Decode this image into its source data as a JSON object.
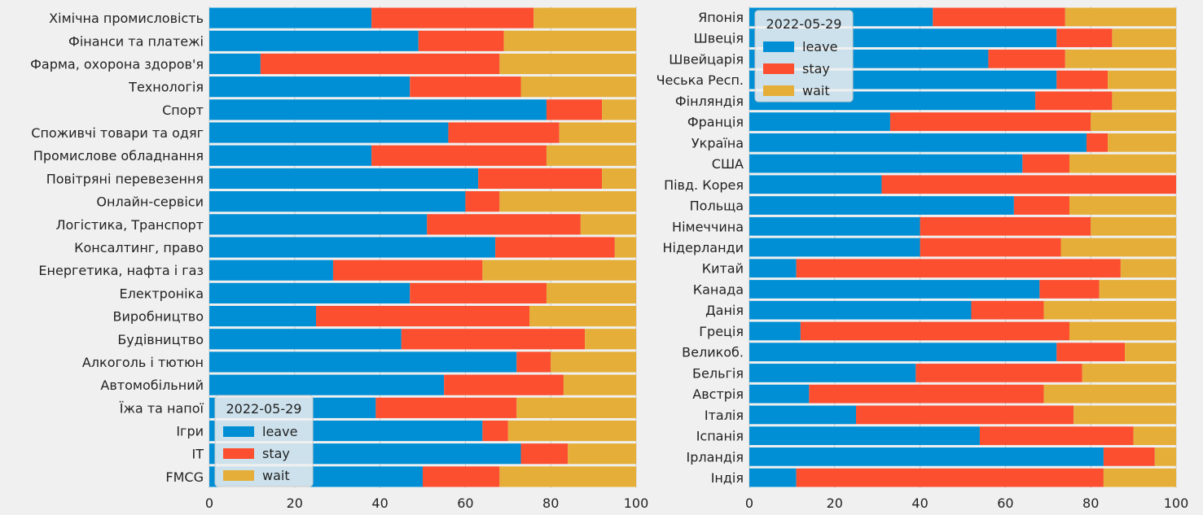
{
  "colors": {
    "leave": "#008fd5",
    "stay": "#fc4f30",
    "wait": "#e5ae38",
    "background": "#f0f0f0",
    "grid": "#cbcbcb"
  },
  "chart_data": [
    {
      "type": "bar",
      "orientation": "horizontal",
      "stacked": true,
      "xlim": [
        0,
        100
      ],
      "xticks": [
        "0",
        "20",
        "40",
        "60",
        "80",
        "100"
      ],
      "grid": true,
      "legend": {
        "title": "2022-05-29",
        "location": "lower-left",
        "entries": [
          "leave",
          "stay",
          "wait"
        ]
      },
      "categories": [
        "Хімічна промисловість",
        "Фінанси та платежі",
        "Фарма, охорона здоров'я",
        "Технологія",
        "Спорт",
        "Споживчі товари та одяг",
        "Промислове обладнання",
        "Повітряні перевезення",
        "Онлайн-сервіси",
        "Логістика, Транспорт",
        "Консалтинг, право",
        "Енергетика, нафта і газ",
        "Електроніка",
        "Виробництво",
        "Будівництво",
        "Алкоголь і тютюн",
        "Автомобільний",
        "Їжа та напої",
        "Ігри",
        "IT",
        "FMCG"
      ],
      "series": [
        {
          "name": "leave",
          "values": [
            38,
            49,
            12,
            47,
            79,
            56,
            38,
            63,
            60,
            51,
            67,
            29,
            47,
            25,
            45,
            72,
            55,
            39,
            64,
            73,
            50
          ]
        },
        {
          "name": "stay",
          "values": [
            38,
            20,
            56,
            26,
            13,
            26,
            41,
            29,
            8,
            36,
            28,
            35,
            32,
            50,
            43,
            8,
            28,
            33,
            6,
            11,
            18
          ]
        },
        {
          "name": "wait",
          "values": [
            24,
            31,
            32,
            27,
            8,
            18,
            21,
            8,
            32,
            13,
            5,
            36,
            21,
            25,
            12,
            20,
            17,
            28,
            30,
            16,
            32
          ]
        }
      ]
    },
    {
      "type": "bar",
      "orientation": "horizontal",
      "stacked": true,
      "xlim": [
        0,
        100
      ],
      "xticks": [
        "0",
        "20",
        "40",
        "60",
        "80",
        "100"
      ],
      "grid": true,
      "legend": {
        "title": "2022-05-29",
        "location": "upper-left",
        "entries": [
          "leave",
          "stay",
          "wait"
        ]
      },
      "categories": [
        "Японія",
        "Швеція",
        "Швейцарія",
        "Чеська Респ.",
        "Фінляндія",
        "Франція",
        "Україна",
        "США",
        "Півд. Корея",
        "Польща",
        "Німеччина",
        "Нідерланди",
        "Китай",
        "Канада",
        "Данія",
        "Греція",
        "Великоб.",
        "Бельгія",
        "Австрія",
        "Італія",
        "Іспанія",
        "Ірландія",
        "Індія"
      ],
      "series": [
        {
          "name": "leave",
          "values": [
            43,
            72,
            56,
            72,
            67,
            33,
            79,
            64,
            31,
            62,
            40,
            40,
            11,
            68,
            52,
            12,
            72,
            39,
            14,
            25,
            54,
            83,
            11
          ]
        },
        {
          "name": "stay",
          "values": [
            31,
            13,
            18,
            12,
            18,
            47,
            5,
            11,
            69,
            13,
            40,
            33,
            76,
            14,
            17,
            63,
            16,
            39,
            55,
            51,
            36,
            12,
            72
          ]
        },
        {
          "name": "wait",
          "values": [
            26,
            15,
            26,
            16,
            15,
            20,
            16,
            25,
            0,
            25,
            20,
            27,
            13,
            18,
            31,
            25,
            12,
            22,
            31,
            24,
            10,
            5,
            17
          ]
        }
      ]
    }
  ]
}
